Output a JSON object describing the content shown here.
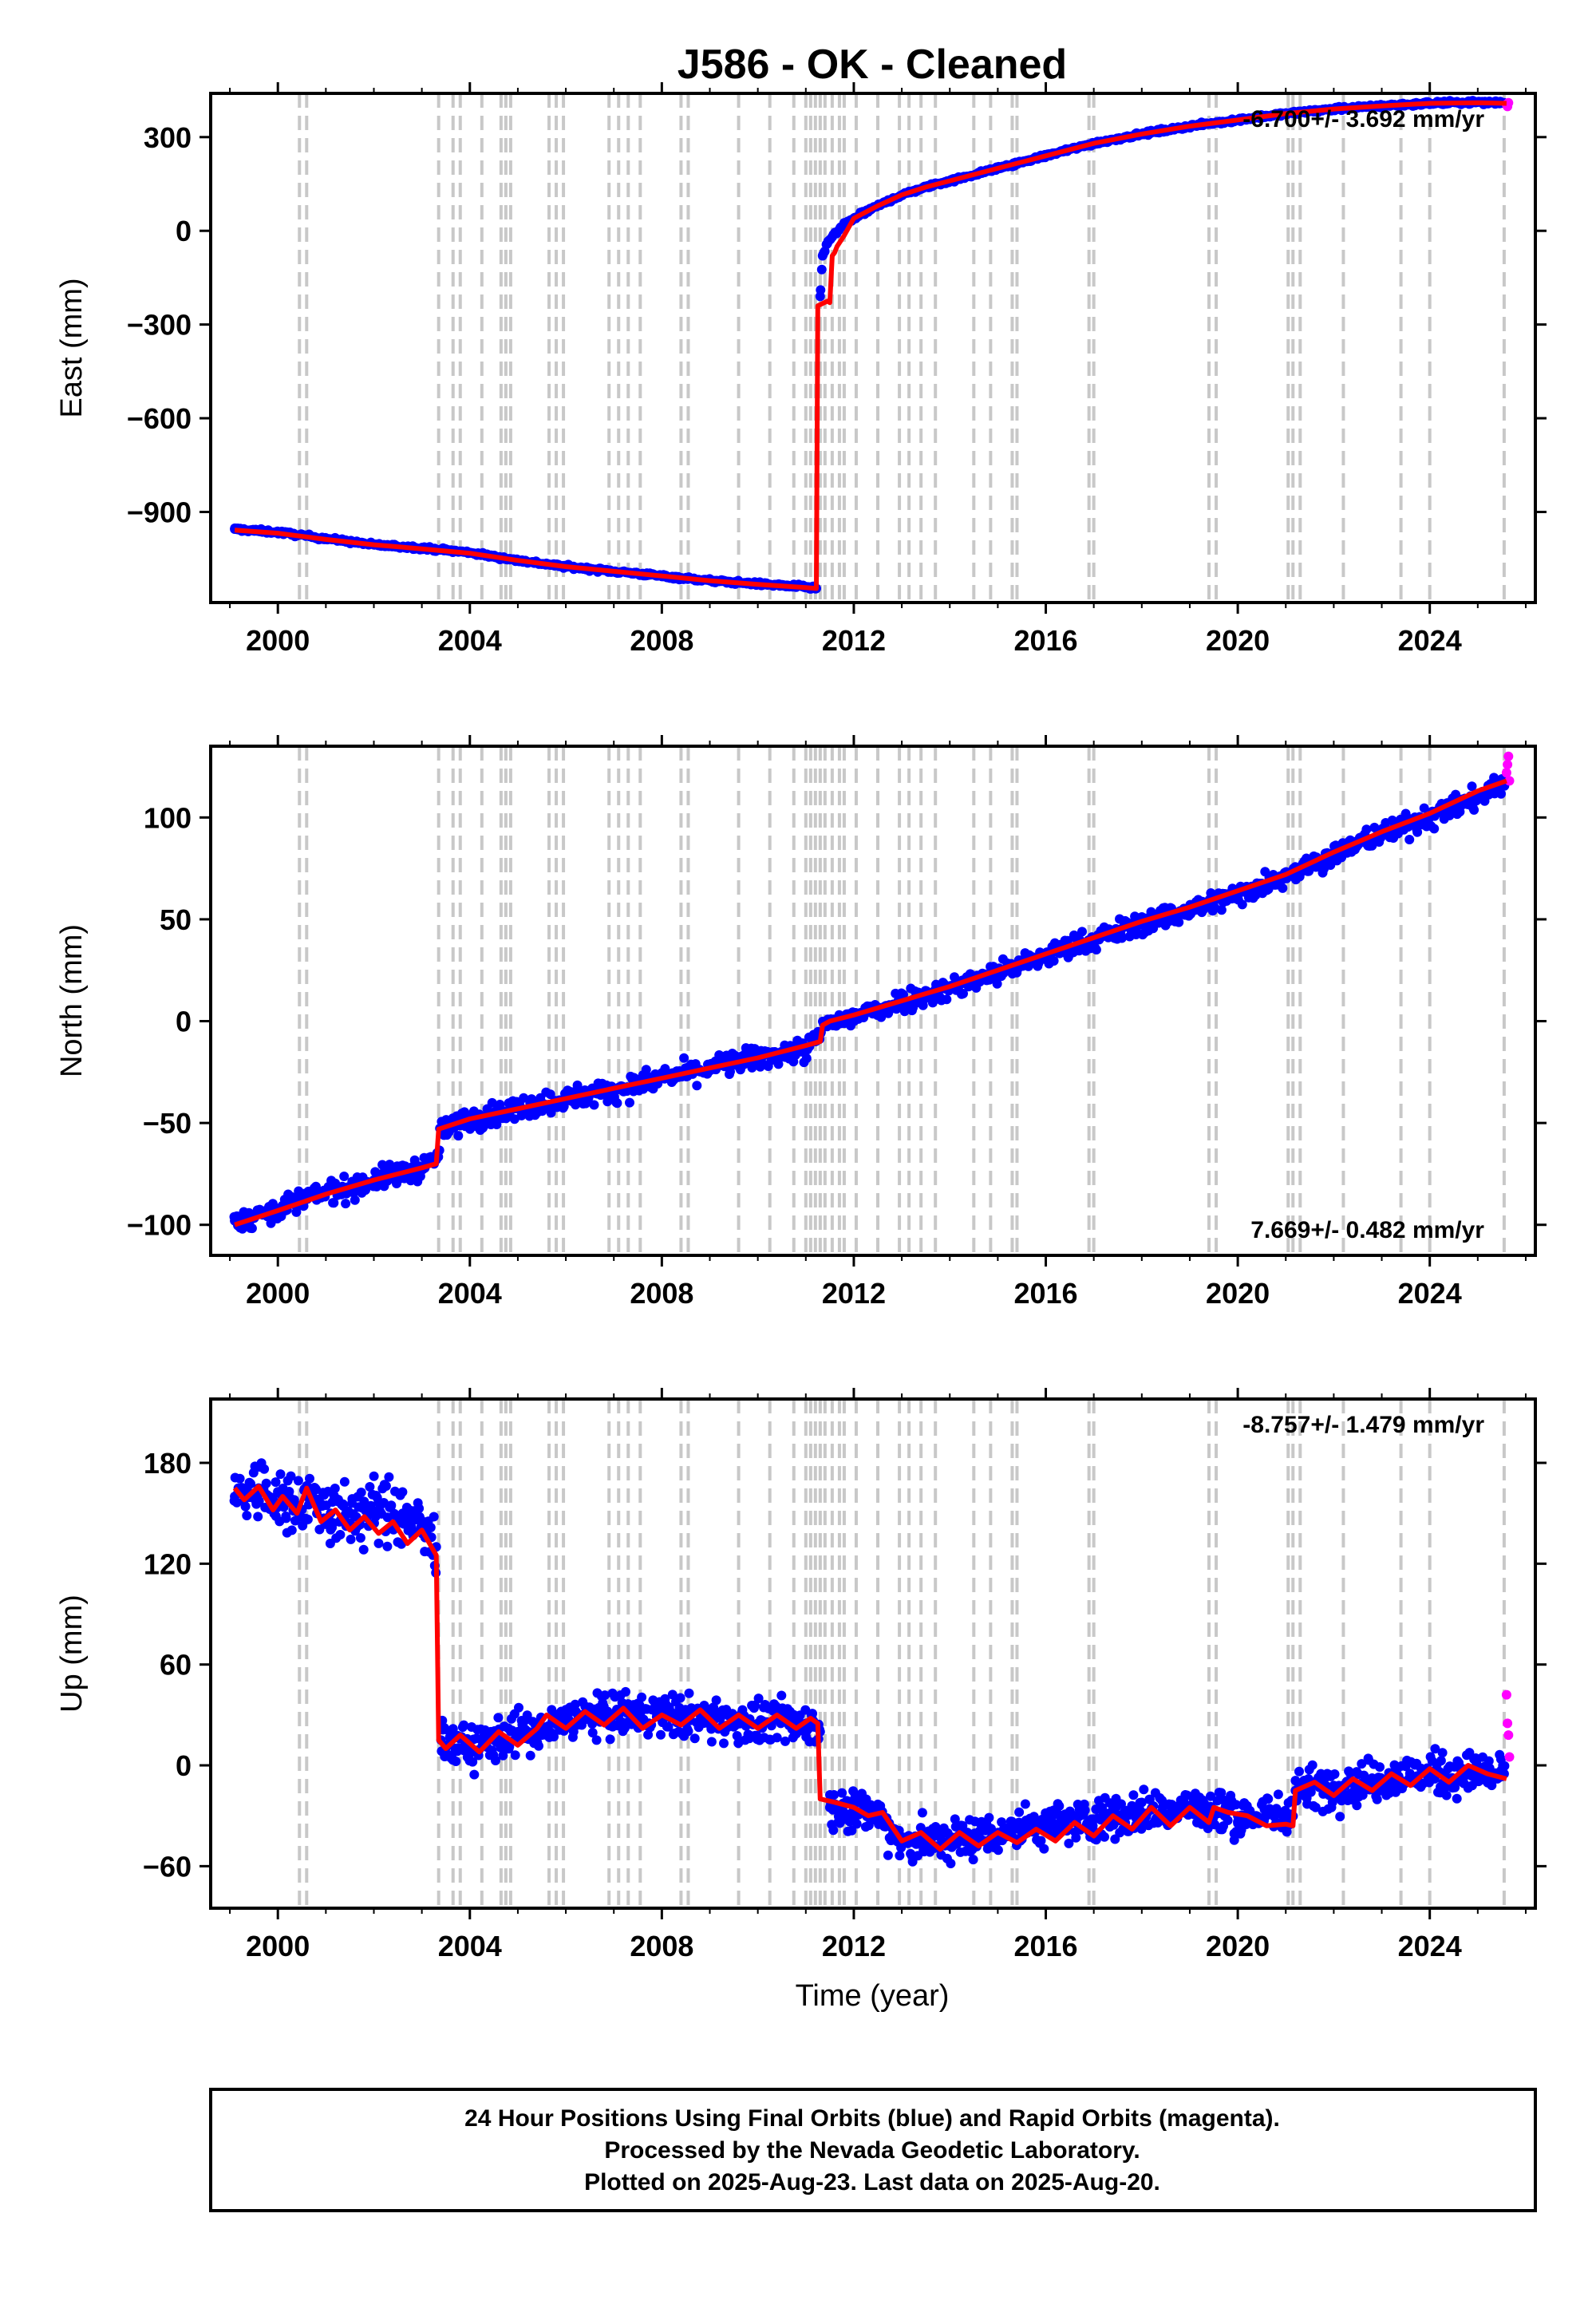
{
  "title": "J586  - OK - Cleaned",
  "x_label": "Time (year)",
  "caption_lines": [
    "24 Hour Positions Using Final Orbits (blue) and Rapid Orbits (magenta).",
    "Processed by the Nevada Geodetic Laboratory.",
    "Plotted on 2025-Aug-23. Last data on 2025-Aug-20."
  ],
  "colors": {
    "final_orbits": "#0000ff",
    "rapid_orbits": "#ff00ff",
    "model": "#ff0000",
    "event_lines": "#c8c8c8"
  },
  "chart_data": [
    {
      "type": "scatter",
      "panel": "east",
      "ylabel": "East (mm)",
      "xlim": [
        1998.6,
        2026.2
      ],
      "ylim": [
        -1190,
        440
      ],
      "xticks": [
        2000,
        2004,
        2008,
        2012,
        2016,
        2020,
        2024
      ],
      "yticks": [
        -900,
        -600,
        -300,
        0,
        300
      ],
      "rate_text": "-6.700+/- 3.692 mm/yr",
      "rate_position": "top-right",
      "series": [
        {
          "role": "final_orbits",
          "x": [
            1999.1,
            2000.0,
            2001.0,
            2002.0,
            2003.0,
            2004.0,
            2005.0,
            2006.0,
            2007.0,
            2008.0,
            2009.0,
            2010.0,
            2011.0,
            2011.22,
            2011.3,
            2011.35,
            2011.45,
            2011.6,
            2011.8,
            2012.0,
            2012.5,
            2013.0,
            2013.5,
            2014.0,
            2015.0,
            2016.0,
            2017.0,
            2018.0,
            2019.0,
            2020.0,
            2021.0,
            2022.0,
            2023.0,
            2024.0,
            2025.0,
            2025.55
          ],
          "y": [
            -955,
            -965,
            -985,
            -1005,
            -1015,
            -1030,
            -1055,
            -1075,
            -1090,
            -1105,
            -1120,
            -1130,
            -1140,
            -1145,
            -210,
            -80,
            -40,
            -10,
            20,
            40,
            80,
            115,
            140,
            160,
            200,
            240,
            280,
            310,
            335,
            355,
            375,
            390,
            400,
            408,
            412,
            410
          ]
        },
        {
          "role": "rapid_orbits",
          "x": [
            2025.6,
            2025.62,
            2025.64
          ],
          "y": [
            405,
            398,
            410
          ]
        },
        {
          "role": "model",
          "x": [
            1999.1,
            2000.0,
            2001.0,
            2002.0,
            2003.0,
            2004.0,
            2005.0,
            2006.0,
            2007.0,
            2008.0,
            2009.0,
            2010.0,
            2011.0,
            2011.22,
            2011.25,
            2011.45,
            2011.5,
            2011.55,
            2011.6,
            2011.65,
            2011.8,
            2012.0,
            2012.5,
            2013.0,
            2013.5,
            2014.0,
            2015.0,
            2016.0,
            2017.0,
            2018.0,
            2019.0,
            2020.0,
            2021.0,
            2022.0,
            2023.0,
            2024.0,
            2025.0,
            2025.6
          ],
          "y": [
            -958,
            -968,
            -988,
            -1005,
            -1018,
            -1032,
            -1055,
            -1075,
            -1090,
            -1105,
            -1120,
            -1132,
            -1142,
            -1145,
            -240,
            -225,
            -230,
            -80,
            -70,
            -50,
            -15,
            40,
            80,
            115,
            140,
            160,
            200,
            240,
            280,
            310,
            335,
            355,
            375,
            390,
            400,
            408,
            410,
            408
          ]
        }
      ]
    },
    {
      "type": "scatter",
      "panel": "north",
      "ylabel": "North (mm)",
      "xlim": [
        1998.6,
        2026.2
      ],
      "ylim": [
        -115,
        135
      ],
      "xticks": [
        2000,
        2004,
        2008,
        2012,
        2016,
        2020,
        2024
      ],
      "yticks": [
        -100,
        -50,
        0,
        50,
        100
      ],
      "rate_text": "7.669+/- 0.482 mm/yr",
      "rate_position": "bottom-right",
      "series": [
        {
          "role": "final_orbits",
          "x": [
            1999.1,
            1999.5,
            2000.0,
            2000.5,
            2001.0,
            2001.5,
            2002.0,
            2002.5,
            2003.0,
            2003.3,
            2003.4,
            2003.6,
            2004.0,
            2005.0,
            2006.0,
            2007.0,
            2008.0,
            2009.0,
            2010.0,
            2011.0,
            2011.2,
            2011.4,
            2011.6,
            2012.0,
            2013.0,
            2014.0,
            2015.0,
            2016.0,
            2017.0,
            2018.0,
            2019.0,
            2020.0,
            2021.0,
            2022.0,
            2023.0,
            2024.0,
            2025.0,
            2025.55
          ],
          "y": [
            -98,
            -96,
            -92,
            -88,
            -84,
            -82,
            -78,
            -75,
            -72,
            -68,
            -55,
            -52,
            -48,
            -43,
            -38,
            -34,
            -28,
            -23,
            -18,
            -14,
            -10,
            -2,
            0,
            2,
            10,
            16,
            24,
            32,
            40,
            48,
            55,
            62,
            72,
            82,
            92,
            100,
            110,
            118
          ]
        },
        {
          "role": "rapid_orbits",
          "x": [
            2025.6,
            2025.62,
            2025.64,
            2025.66
          ],
          "y": [
            122,
            126,
            130,
            118
          ]
        },
        {
          "role": "model",
          "x": [
            1999.1,
            2000.0,
            2001.0,
            2002.0,
            2003.0,
            2003.3,
            2003.35,
            2004.0,
            2005.0,
            2006.0,
            2007.0,
            2008.0,
            2009.0,
            2010.0,
            2011.0,
            2011.3,
            2011.35,
            2011.5,
            2012.0,
            2013.0,
            2014.0,
            2015.0,
            2016.0,
            2017.0,
            2018.0,
            2019.0,
            2020.0,
            2021.0,
            2022.0,
            2023.0,
            2024.0,
            2025.0,
            2025.6
          ],
          "y": [
            -100,
            -93,
            -85,
            -78,
            -72,
            -70,
            -53,
            -48,
            -43,
            -38,
            -33,
            -28,
            -23,
            -18,
            -12,
            -10,
            -2,
            0,
            3,
            10,
            17,
            25,
            33,
            41,
            49,
            56,
            64,
            72,
            83,
            93,
            102,
            113,
            118
          ]
        }
      ]
    },
    {
      "type": "scatter",
      "panel": "up",
      "ylabel": "Up (mm)",
      "xlim": [
        1998.6,
        2026.2
      ],
      "ylim": [
        -85,
        218
      ],
      "xticks": [
        2000,
        2004,
        2008,
        2012,
        2016,
        2020,
        2024
      ],
      "yticks": [
        -60,
        0,
        60,
        120,
        180
      ],
      "rate_text": "-8.757+/- 1.479 mm/yr",
      "rate_position": "top-right",
      "series": [
        {
          "role": "final_orbits",
          "x": [
            1999.1,
            1999.6,
            2000.1,
            2000.6,
            2001.1,
            2001.6,
            2002.1,
            2002.6,
            2003.0,
            2003.3,
            2003.4,
            2004.0,
            2004.5,
            2005.0,
            2005.5,
            2006.0,
            2007.0,
            2008.0,
            2009.0,
            2010.0,
            2011.0,
            2011.3,
            2011.5,
            2012.0,
            2012.5,
            2013.0,
            2014.0,
            2015.0,
            2016.0,
            2017.0,
            2018.0,
            2019.0,
            2020.0,
            2021.0,
            2021.2,
            2022.0,
            2023.0,
            2024.0,
            2025.0,
            2025.55
          ],
          "y": [
            160,
            165,
            155,
            160,
            150,
            148,
            152,
            150,
            140,
            130,
            15,
            10,
            15,
            20,
            18,
            28,
            30,
            30,
            28,
            25,
            25,
            20,
            -25,
            -25,
            -30,
            -45,
            -45,
            -40,
            -35,
            -32,
            -28,
            -25,
            -30,
            -30,
            -15,
            -12,
            -8,
            -5,
            -5,
            -5
          ]
        },
        {
          "role": "rapid_orbits",
          "x": [
            2025.6,
            2025.62,
            2025.64,
            2025.66
          ],
          "y": [
            42,
            25,
            18,
            5
          ]
        },
        {
          "role": "model",
          "x": [
            1999.1,
            1999.3,
            1999.6,
            1999.9,
            2000.1,
            2000.4,
            2000.6,
            2000.9,
            2001.2,
            2001.5,
            2001.8,
            2002.1,
            2002.4,
            2002.7,
            2003.0,
            2003.3,
            2003.35,
            2003.5,
            2003.8,
            2004.2,
            2004.6,
            2005.0,
            2005.4,
            2005.6,
            2006.0,
            2006.4,
            2006.8,
            2007.2,
            2007.6,
            2008.0,
            2008.4,
            2008.8,
            2009.2,
            2009.6,
            2010.0,
            2010.4,
            2010.8,
            2011.1,
            2011.25,
            2011.3,
            2011.6,
            2012.0,
            2012.3,
            2012.6,
            2013.0,
            2013.4,
            2013.8,
            2014.2,
            2014.6,
            2015.0,
            2015.4,
            2015.8,
            2016.2,
            2016.6,
            2017.0,
            2017.4,
            2017.8,
            2018.2,
            2018.6,
            2019.0,
            2019.4,
            2019.5,
            2019.8,
            2020.2,
            2020.6,
            2021.0,
            2021.15,
            2021.2,
            2021.6,
            2022.0,
            2022.4,
            2022.8,
            2023.2,
            2023.6,
            2024.0,
            2024.4,
            2024.8,
            2025.2,
            2025.6
          ],
          "y": [
            165,
            158,
            166,
            152,
            160,
            150,
            165,
            145,
            152,
            140,
            148,
            138,
            145,
            132,
            140,
            125,
            15,
            10,
            18,
            8,
            20,
            12,
            22,
            30,
            22,
            32,
            24,
            34,
            22,
            30,
            24,
            33,
            22,
            30,
            22,
            30,
            22,
            28,
            25,
            -20,
            -22,
            -25,
            -30,
            -28,
            -45,
            -40,
            -50,
            -40,
            -48,
            -40,
            -46,
            -38,
            -45,
            -34,
            -42,
            -30,
            -38,
            -25,
            -36,
            -25,
            -34,
            -25,
            -28,
            -30,
            -36,
            -35,
            -36,
            -15,
            -10,
            -18,
            -8,
            -15,
            -5,
            -12,
            -2,
            -10,
            0,
            -5,
            -8
          ]
        }
      ]
    }
  ],
  "event_lines_years": [
    2000.45,
    2000.6,
    2003.35,
    2003.65,
    2003.8,
    2004.25,
    2004.65,
    2004.75,
    2004.85,
    2005.65,
    2005.8,
    2005.95,
    2006.9,
    2007.1,
    2007.3,
    2007.55,
    2008.4,
    2008.55,
    2009.6,
    2010.25,
    2010.75,
    2011.0,
    2011.1,
    2011.2,
    2011.3,
    2011.4,
    2011.55,
    2011.7,
    2011.8,
    2012.05,
    2012.5,
    2012.95,
    2013.15,
    2013.4,
    2013.7,
    2014.5,
    2014.85,
    2015.3,
    2015.4,
    2016.9,
    2017.0,
    2019.4,
    2019.55,
    2021.05,
    2021.15,
    2021.3,
    2022.2,
    2023.4,
    2024.0,
    2025.55
  ]
}
